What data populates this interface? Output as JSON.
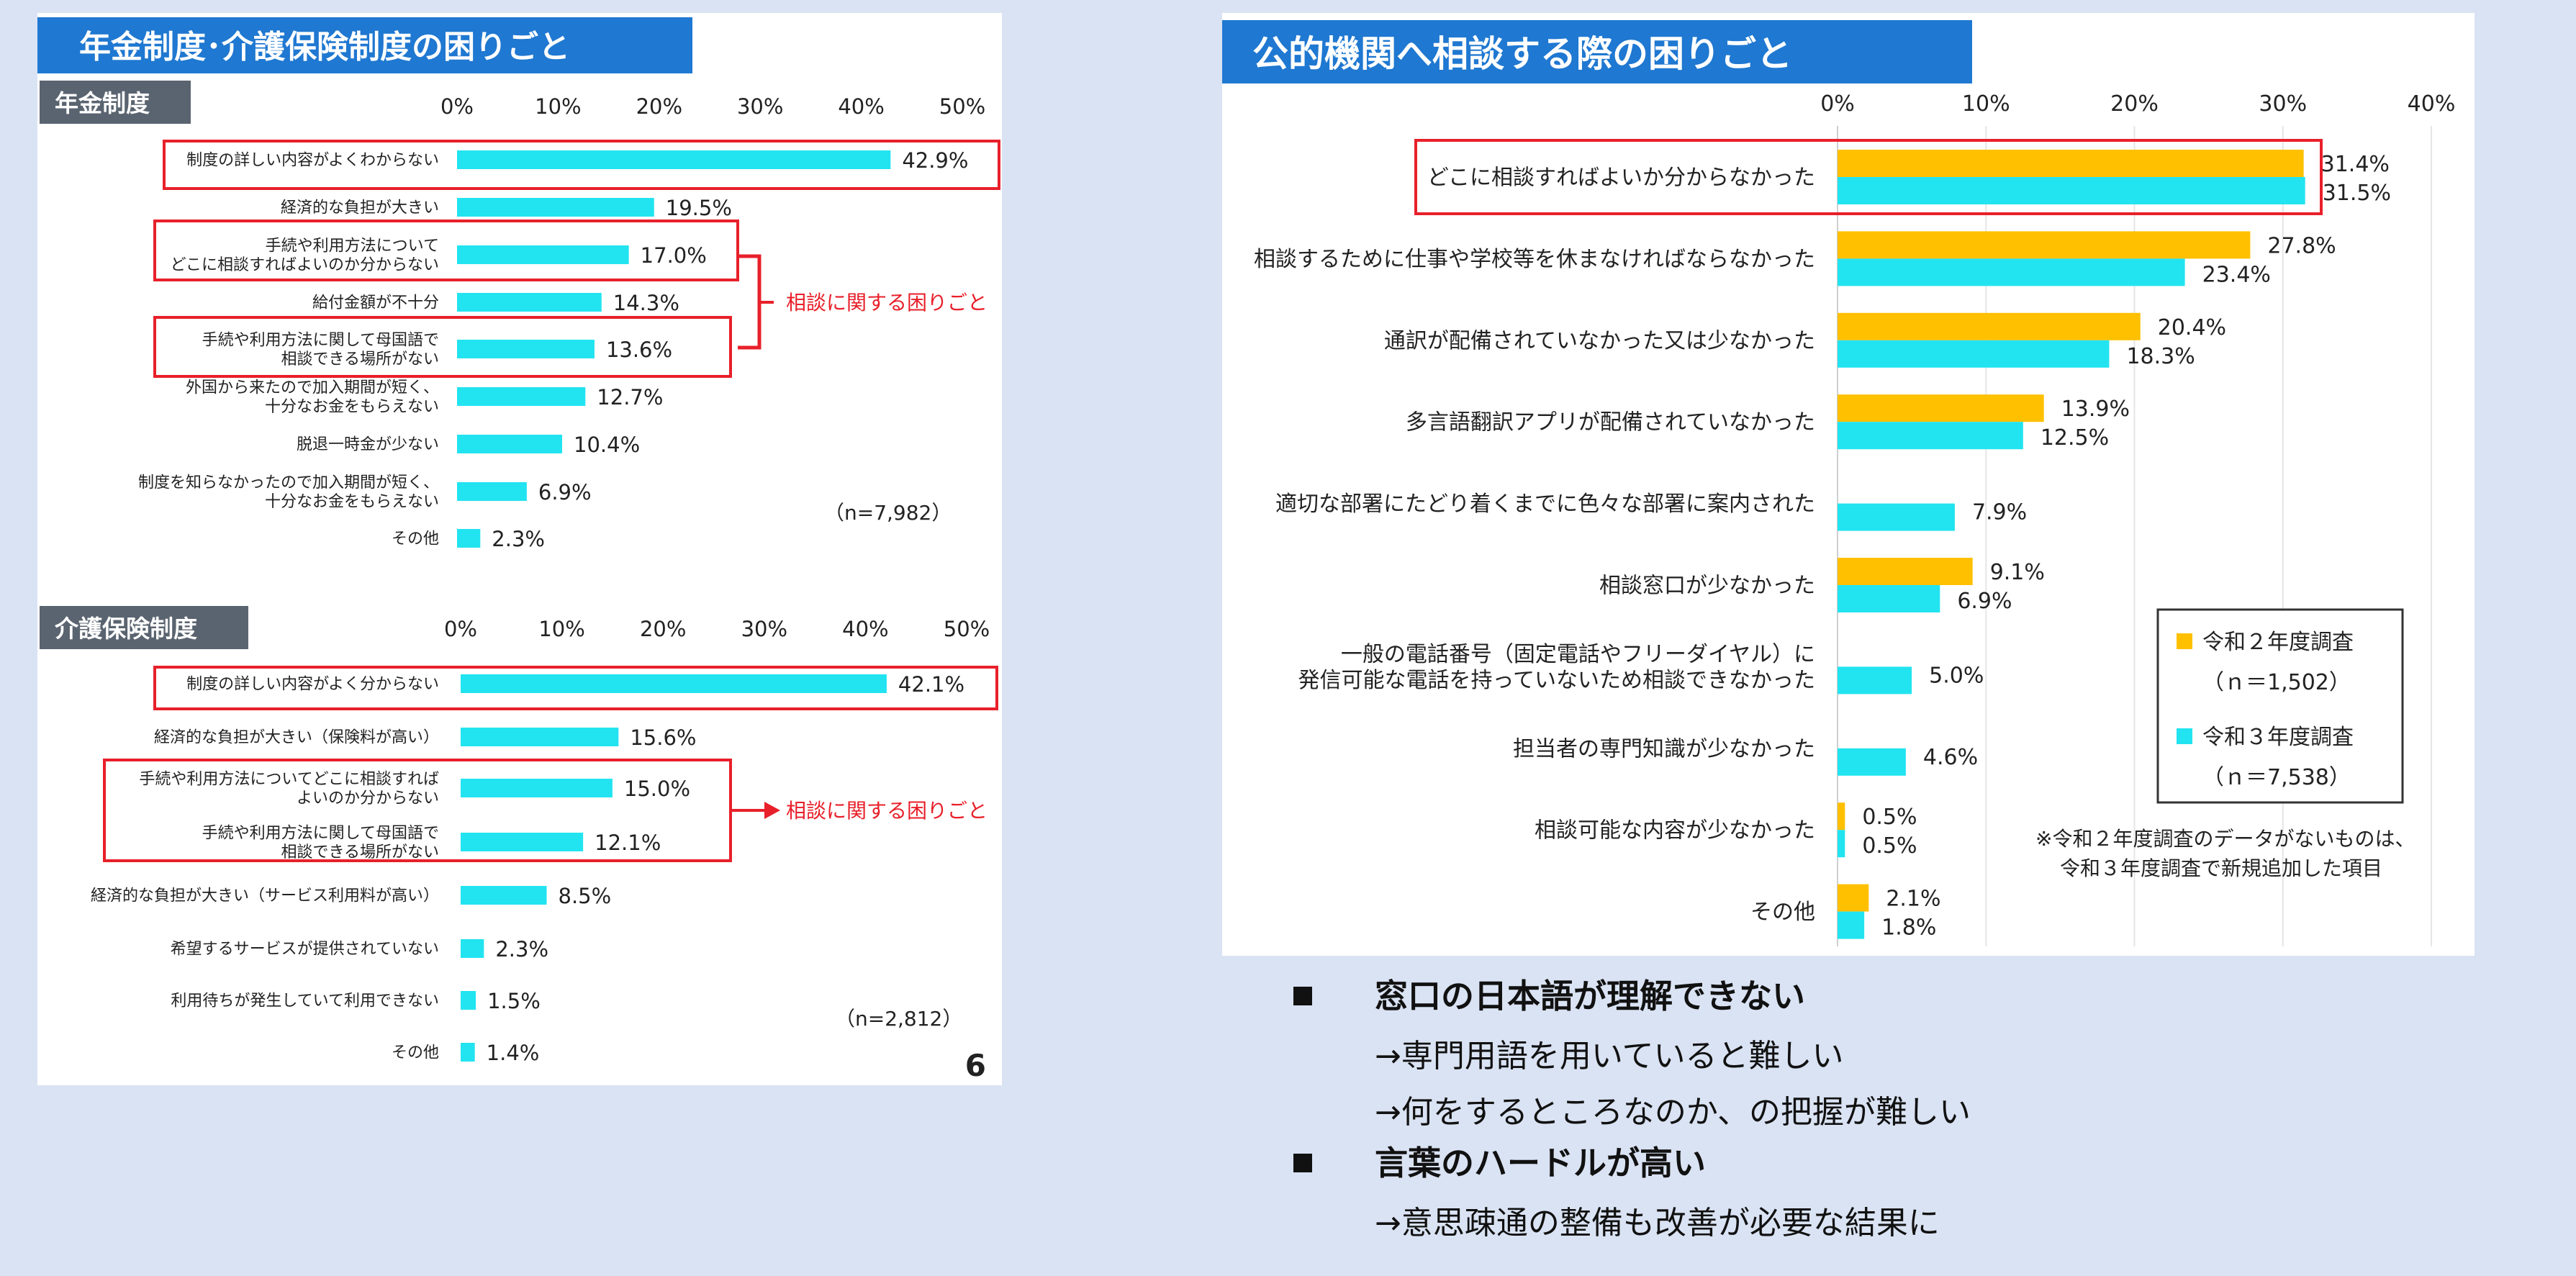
{
  "colors": {
    "page_bg": "#dae3f3",
    "panel_bg": "#ffffff",
    "title_bar": "#1f78d1",
    "sub_bar": "#5a6470",
    "bar_cyan": "#22e3f0",
    "bar_orange": "#ffc000",
    "highlight": "#e8202a",
    "text": "#222222"
  },
  "icons": {
    "bullet": "square-bullet-icon"
  },
  "page_number": "6",
  "left_panel": {
    "title": "年金制度･介護保険制度の困りごと",
    "callout_text": "相談に関する困りごと"
  },
  "right_panel": {
    "title": "公的機関へ相談する際の困りごと",
    "legend": {
      "r2_label": "令和２年度調査",
      "r2_n": "（ｎ＝1,502）",
      "r3_label": "令和３年度調査",
      "r3_n": "（ｎ＝7,538）"
    },
    "note_line1": "※令和２年度調査のデータがないものは、",
    "note_line2": "令和３年度調査で新規追加した項目"
  },
  "bullets": [
    {
      "heading": "窓口の日本語が理解できない",
      "lines": [
        "→専門用語を用いていると難しい",
        "→何をするところなのか、の把握が難しい"
      ]
    },
    {
      "heading": "言葉のハードルが高い",
      "lines": [
        "→意思疎通の整備も改善が必要な結果に"
      ]
    }
  ],
  "chart_data": [
    {
      "type": "bar",
      "orientation": "horizontal",
      "subtitle": "年金制度",
      "x_ticks": [
        "0%",
        "10%",
        "20%",
        "30%",
        "40%",
        "50%"
      ],
      "xlim": [
        0,
        50
      ],
      "n_label": "（n=7,982）",
      "categories": [
        "制度の詳しい内容がよくわからない",
        "経済的な負担が大きい",
        "手続や利用方法について\nどこに相談すればよいのか分からない",
        "給付金額が不十分",
        "手続や利用方法に関して母国語で\n相談できる場所がない",
        "外国から来たので加入期間が短く、\n十分なお金をもらえない",
        "脱退一時金が少ない",
        "制度を知らなかったので加入期間が短く、\n十分なお金をもらえない",
        "その他"
      ],
      "values": [
        42.9,
        19.5,
        17.0,
        14.3,
        13.6,
        12.7,
        10.4,
        6.9,
        2.3
      ],
      "value_labels": [
        "42.9%",
        "19.5%",
        "17.0%",
        "14.3%",
        "13.6%",
        "12.7%",
        "10.4%",
        "6.9%",
        "2.3%"
      ]
    },
    {
      "type": "bar",
      "orientation": "horizontal",
      "subtitle": "介護保険制度",
      "x_ticks": [
        "0%",
        "10%",
        "20%",
        "30%",
        "40%",
        "50%"
      ],
      "xlim": [
        0,
        50
      ],
      "n_label": "（n=2,812）",
      "categories": [
        "制度の詳しい内容がよく分からない",
        "経済的な負担が大きい（保険料が高い）",
        "手続や利用方法についてどこに相談すれば\nよいのか分からない",
        "手続や利用方法に関して母国語で\n相談できる場所がない",
        "経済的な負担が大きい（サービス利用料が高い）",
        "希望するサービスが提供されていない",
        "利用待ちが発生していて利用できない",
        "その他"
      ],
      "values": [
        42.1,
        15.6,
        15.0,
        12.1,
        8.5,
        2.3,
        1.5,
        1.4
      ],
      "value_labels": [
        "42.1%",
        "15.6%",
        "15.0%",
        "12.1%",
        "8.5%",
        "2.3%",
        "1.5%",
        "1.4%"
      ]
    },
    {
      "type": "bar",
      "orientation": "horizontal",
      "x_ticks": [
        "0%",
        "10%",
        "20%",
        "30%",
        "40%"
      ],
      "xlim": [
        0,
        40
      ],
      "categories": [
        "どこに相談すればよいか分からなかった",
        "相談するために仕事や学校等を休まなければならなかった",
        "通訳が配備されていなかった又は少なかった",
        "多言語翻訳アプリが配備されていなかった",
        "適切な部署にたどり着くまでに色々な部署に案内された",
        "相談窓口が少なかった",
        "一般の電話番号（固定電話やフリーダイヤル）に\n発信可能な電話を持っていないため相談できなかった",
        "担当者の専門知識が少なかった",
        "相談可能な内容が少なかった",
        "その他"
      ],
      "series": [
        {
          "name": "令和２年度調査",
          "values": [
            31.4,
            27.8,
            20.4,
            13.9,
            null,
            9.1,
            null,
            null,
            0.5,
            2.1
          ],
          "value_labels": [
            "31.4%",
            "27.8%",
            "20.4%",
            "13.9%",
            "",
            "9.1%",
            "",
            "",
            "0.5%",
            "2.1%"
          ]
        },
        {
          "name": "令和３年度調査",
          "values": [
            31.5,
            23.4,
            18.3,
            12.5,
            7.9,
            6.9,
            5.0,
            4.6,
            0.5,
            1.8
          ],
          "value_labels": [
            "31.5%",
            "23.4%",
            "18.3%",
            "12.5%",
            "7.9%",
            "6.9%",
            "5.0%",
            "4.6%",
            "0.5%",
            "1.8%"
          ]
        }
      ]
    }
  ]
}
